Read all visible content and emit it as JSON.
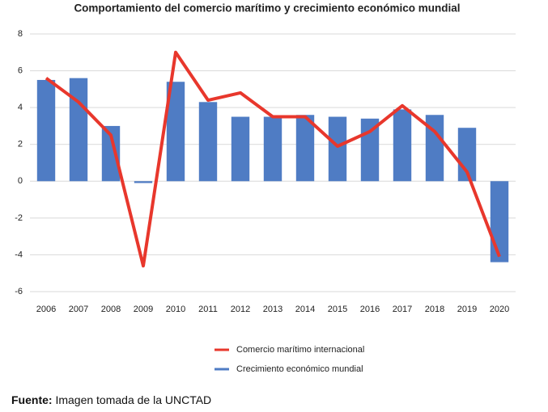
{
  "chart_data": {
    "type": "bar",
    "title": "Comportamiento del comercio marítimo y crecimiento económico mundial",
    "categories": [
      "2006",
      "2007",
      "2008",
      "2009",
      "2010",
      "2011",
      "2012",
      "2013",
      "2014",
      "2015",
      "2016",
      "2017",
      "2018",
      "2019",
      "2020"
    ],
    "series": [
      {
        "name": "Comercio marítimo internacional",
        "type": "line",
        "color": "#e8372c",
        "values": [
          5.6,
          4.3,
          2.5,
          -4.6,
          7.0,
          4.4,
          4.8,
          3.5,
          3.5,
          1.9,
          2.7,
          4.1,
          2.7,
          0.5,
          -4.1
        ]
      },
      {
        "name": "Crecimiento económico mundial",
        "type": "bar",
        "color": "#4f7cc4",
        "values": [
          5.5,
          5.6,
          3.0,
          -0.1,
          5.4,
          4.3,
          3.5,
          3.5,
          3.6,
          3.5,
          3.4,
          3.9,
          3.6,
          2.9,
          -4.4
        ]
      }
    ],
    "ylim": [
      -6,
      8
    ],
    "yticks": [
      -6,
      -4,
      -2,
      0,
      2,
      4,
      6,
      8
    ],
    "grid": true,
    "legend": "bottom"
  },
  "source": {
    "label": "Fuente:",
    "text": "Imagen tomada de la UNCTAD"
  }
}
